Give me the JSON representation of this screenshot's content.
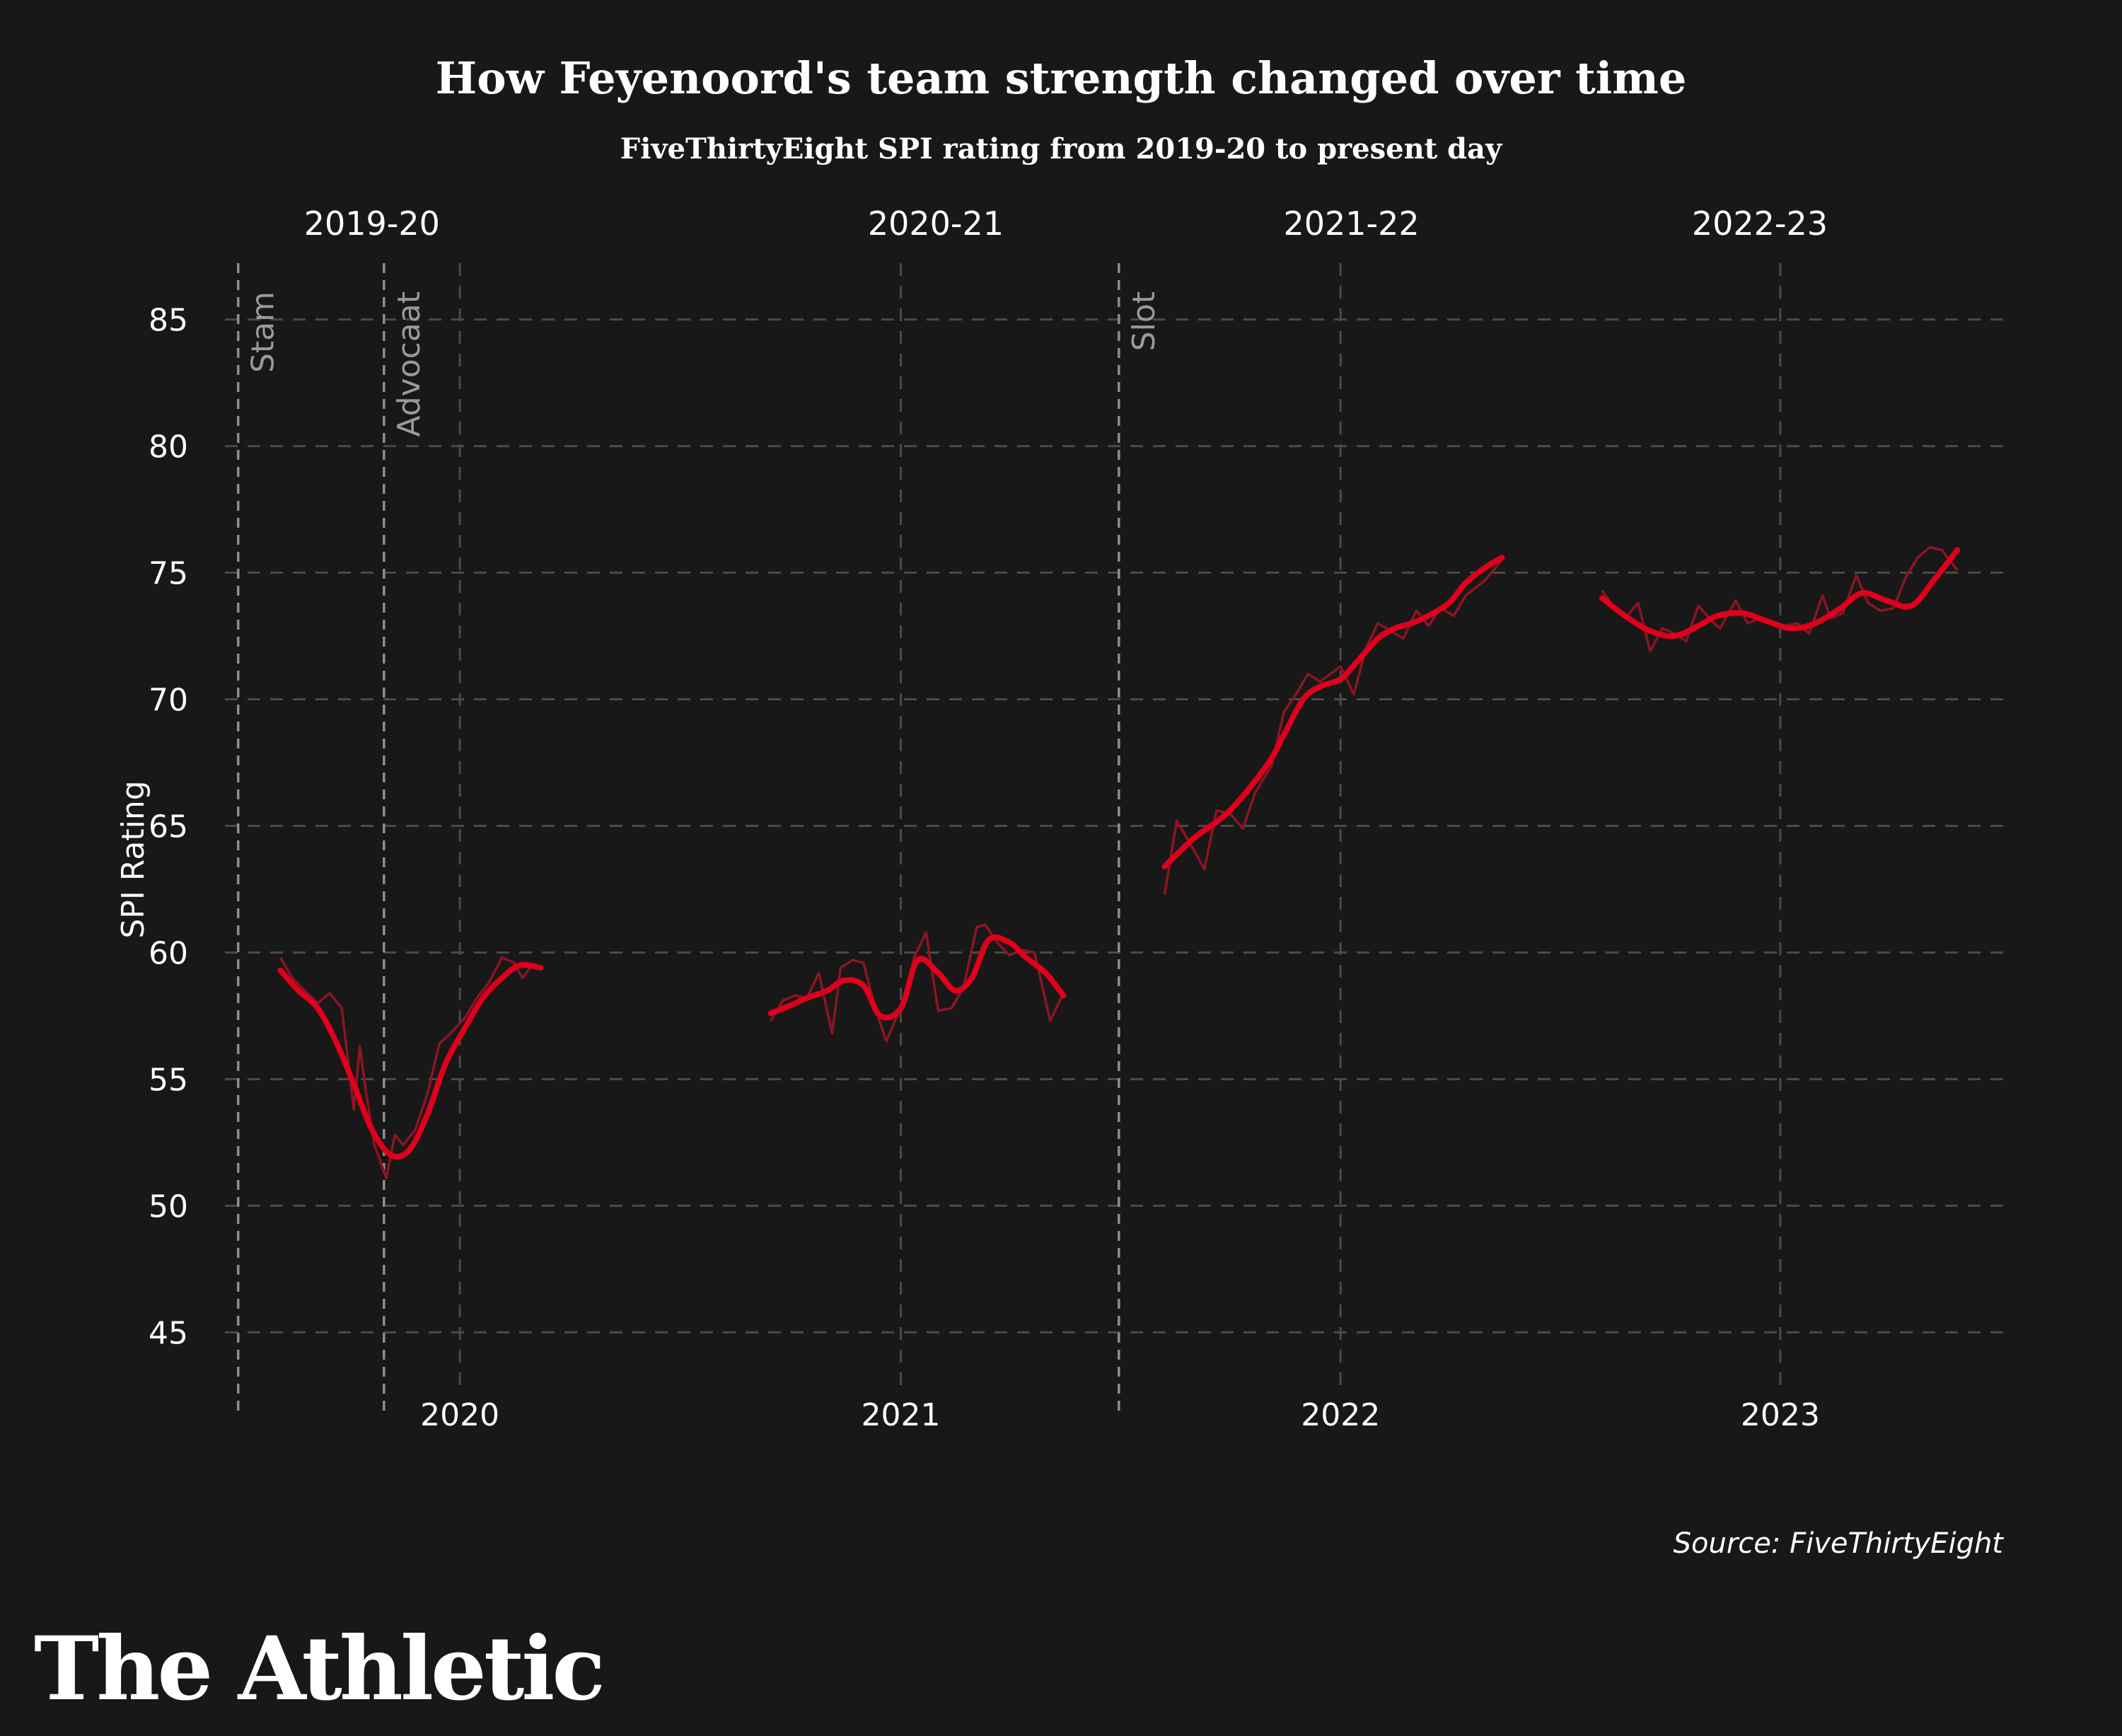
{
  "chart_data": {
    "type": "line",
    "title": "How Feyenoord's team strength changed over time",
    "subtitle": "FiveThirtyEight SPI rating from 2019-20 to present day",
    "ylabel": "SPI Rating",
    "ylim": [
      43,
      87
    ],
    "xlim": [
      "2019-06-20",
      "2023-07-05"
    ],
    "yticks": [
      45,
      50,
      55,
      60,
      65,
      70,
      75,
      80,
      85
    ],
    "xticks": [
      {
        "label": "2020",
        "date": "2020-01-01"
      },
      {
        "label": "2021",
        "date": "2021-01-01"
      },
      {
        "label": "2022",
        "date": "2022-01-01"
      },
      {
        "label": "2023",
        "date": "2023-01-01"
      }
    ],
    "seasons": [
      {
        "label": "2019-20",
        "center": "2019-10-20"
      },
      {
        "label": "2020-21",
        "center": "2021-01-30"
      },
      {
        "label": "2021-22",
        "center": "2022-01-10"
      },
      {
        "label": "2022-23",
        "center": "2022-12-15"
      }
    ],
    "managers": [
      {
        "name": "Stam",
        "date": "2019-07-01"
      },
      {
        "name": "Advocaat",
        "date": "2019-10-30"
      },
      {
        "name": "Slot",
        "date": "2021-07-01"
      }
    ],
    "series": [
      {
        "segments": [
          {
            "x": [
              "2019-08-05",
              "2019-08-20",
              "2019-09-05",
              "2019-09-20",
              "2019-10-05",
              "2019-10-20",
              "2019-11-05",
              "2019-11-20",
              "2019-12-05",
              "2019-12-20",
              "2020-01-05",
              "2020-01-20",
              "2020-02-05",
              "2020-02-20",
              "2020-03-08"
            ],
            "y": [
              59.3,
              58.5,
              57.8,
              56.5,
              54.8,
              53.0,
              52.0,
              52.2,
              53.6,
              55.6,
              57.0,
              58.2,
              59.0,
              59.5,
              59.4
            ]
          },
          {
            "x": [
              "2020-09-15",
              "2020-10-01",
              "2020-10-15",
              "2020-11-01",
              "2020-11-15",
              "2020-12-01",
              "2020-12-15",
              "2021-01-01",
              "2021-01-15",
              "2021-02-01",
              "2021-02-15",
              "2021-03-01",
              "2021-03-15",
              "2021-04-01",
              "2021-04-15",
              "2021-05-01",
              "2021-05-16"
            ],
            "y": [
              57.6,
              57.9,
              58.2,
              58.5,
              58.9,
              58.7,
              57.5,
              57.8,
              59.7,
              59.2,
              58.5,
              59.0,
              60.5,
              60.4,
              59.8,
              59.2,
              58.3
            ]
          },
          {
            "x": [
              "2021-08-08",
              "2021-09-01",
              "2021-10-01",
              "2021-11-01",
              "2021-11-15",
              "2021-12-01",
              "2021-12-15",
              "2022-01-01",
              "2022-01-15",
              "2022-02-01",
              "2022-02-15",
              "2022-03-01",
              "2022-03-15",
              "2022-04-01",
              "2022-04-15",
              "2022-05-01",
              "2022-05-15"
            ],
            "y": [
              63.4,
              64.5,
              65.6,
              67.4,
              68.6,
              70.0,
              70.5,
              70.8,
              71.5,
              72.4,
              72.8,
              73.0,
              73.3,
              73.8,
              74.6,
              75.2,
              75.6
            ]
          },
          {
            "x": [
              "2022-08-06",
              "2022-08-25",
              "2022-09-15",
              "2022-10-05",
              "2022-10-25",
              "2022-11-10",
              "2022-12-01",
              "2022-12-20",
              "2023-01-10",
              "2023-01-30",
              "2023-02-20",
              "2023-03-10",
              "2023-03-30",
              "2023-04-20",
              "2023-05-10",
              "2023-05-28"
            ],
            "y": [
              74.0,
              73.3,
              72.7,
              72.5,
              72.9,
              73.3,
              73.4,
              73.1,
              72.8,
              73.0,
              73.6,
              74.2,
              73.9,
              73.7,
              74.8,
              75.9
            ]
          }
        ]
      },
      {
        "segments": [
          {
            "x": [
              "2019-08-05",
              "2019-08-15",
              "2019-08-25",
              "2019-09-05",
              "2019-09-15",
              "2019-09-25",
              "2019-10-05",
              "2019-10-10",
              "2019-10-15",
              "2019-10-22",
              "2019-11-01",
              "2019-11-08",
              "2019-11-15",
              "2019-11-25",
              "2019-12-05",
              "2019-12-15",
              "2019-12-22",
              "2020-01-05",
              "2020-01-15",
              "2020-01-25",
              "2020-02-05",
              "2020-02-15",
              "2020-02-22",
              "2020-03-01",
              "2020-03-08"
            ],
            "y": [
              59.8,
              59.0,
              58.5,
              58.0,
              58.4,
              57.8,
              53.8,
              56.3,
              54.5,
              52.4,
              51.1,
              52.8,
              52.4,
              53.0,
              54.4,
              56.4,
              56.7,
              57.4,
              58.2,
              58.8,
              59.8,
              59.6,
              59.0,
              59.5,
              59.4
            ]
          },
          {
            "x": [
              "2020-09-15",
              "2020-09-25",
              "2020-10-05",
              "2020-10-15",
              "2020-10-25",
              "2020-11-05",
              "2020-11-12",
              "2020-11-22",
              "2020-12-01",
              "2020-12-10",
              "2020-12-20",
              "2021-01-05",
              "2021-01-12",
              "2021-01-22",
              "2021-02-01",
              "2021-02-12",
              "2021-02-22",
              "2021-03-05",
              "2021-03-12",
              "2021-03-22",
              "2021-04-01",
              "2021-04-12",
              "2021-04-22",
              "2021-05-05",
              "2021-05-16"
            ],
            "y": [
              57.3,
              58.1,
              58.3,
              58.2,
              59.2,
              56.8,
              59.4,
              59.7,
              59.6,
              57.9,
              56.5,
              58.3,
              59.8,
              60.8,
              57.7,
              57.8,
              58.6,
              61.0,
              61.1,
              60.4,
              59.9,
              60.1,
              60.0,
              57.3,
              58.4
            ]
          },
          {
            "x": [
              "2021-08-08",
              "2021-08-18",
              "2021-08-28",
              "2021-09-10",
              "2021-09-20",
              "2021-10-01",
              "2021-10-12",
              "2021-10-22",
              "2021-11-05",
              "2021-11-15",
              "2021-11-25",
              "2021-12-05",
              "2021-12-15",
              "2022-01-01",
              "2022-01-12",
              "2022-01-22",
              "2022-02-01",
              "2022-02-12",
              "2022-02-22",
              "2022-03-05",
              "2022-03-15",
              "2022-03-25",
              "2022-04-05",
              "2022-04-15",
              "2022-05-01",
              "2022-05-15"
            ],
            "y": [
              62.3,
              65.2,
              64.4,
              63.3,
              65.6,
              65.5,
              64.9,
              66.3,
              67.4,
              69.5,
              70.2,
              71.0,
              70.7,
              71.3,
              70.2,
              72.0,
              73.0,
              72.7,
              72.4,
              73.5,
              72.9,
              73.6,
              73.3,
              74.1,
              74.7,
              75.5
            ]
          },
          {
            "x": [
              "2022-08-06",
              "2022-08-15",
              "2022-08-25",
              "2022-09-05",
              "2022-09-15",
              "2022-09-25",
              "2022-10-05",
              "2022-10-15",
              "2022-10-25",
              "2022-11-05",
              "2022-11-12",
              "2022-11-25",
              "2022-12-05",
              "2022-12-15",
              "2023-01-05",
              "2023-01-15",
              "2023-01-25",
              "2023-02-05",
              "2023-02-12",
              "2023-02-22",
              "2023-03-05",
              "2023-03-15",
              "2023-03-25",
              "2023-04-05",
              "2023-04-15",
              "2023-04-25",
              "2023-05-05",
              "2023-05-15",
              "2023-05-28"
            ],
            "y": [
              74.3,
              73.7,
              73.2,
              73.8,
              71.9,
              72.8,
              72.6,
              72.3,
              73.7,
              73.1,
              72.8,
              73.9,
              73.0,
              73.2,
              72.9,
              73.0,
              72.6,
              74.1,
              73.2,
              73.4,
              74.9,
              73.8,
              73.5,
              73.6,
              74.8,
              75.6,
              76.0,
              75.9,
              75.1
            ]
          }
        ]
      }
    ],
    "colors": {
      "background": "#181818",
      "smooth_line": "#e0001b",
      "raw_line": "#8c1523",
      "grid": "#4a4a4a",
      "manager_line": "#8e8e8e"
    }
  },
  "source": "Source: FiveThirtyEight",
  "brand": "The Athletic"
}
